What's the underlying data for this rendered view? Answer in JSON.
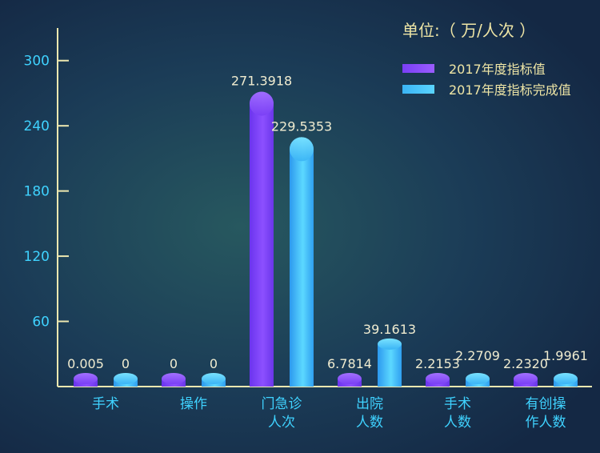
{
  "unit_label": "单位:（ 万/人次 ）",
  "colors": {
    "series1_top": "#8a4cff",
    "series1_bottom": "#5a2ee0",
    "series2_top": "#5ad4ff",
    "series2_bottom": "#2b9ef0",
    "axis": "#eee8b0",
    "tick_text": "#3fd2ff",
    "category_text": "#3fd2ff",
    "value_text": "#f0ecd0"
  },
  "chart_data": {
    "type": "bar",
    "title": "",
    "xlabel": "",
    "ylabel": "",
    "ylim": [
      0,
      330
    ],
    "yticks": [
      60,
      120,
      180,
      240,
      300
    ],
    "grid": false,
    "legend_position": "top-right",
    "categories": [
      [
        "手术"
      ],
      [
        "操作"
      ],
      [
        "门急诊",
        "人次"
      ],
      [
        "出院",
        "人数"
      ],
      [
        "手术",
        "人数"
      ],
      [
        "有创操",
        "作人数"
      ]
    ],
    "series": [
      {
        "name": "2017年度指标值",
        "values": [
          0.005,
          0,
          271.3918,
          6.7814,
          2.2153,
          2.232
        ],
        "labels": [
          "0.005",
          "0",
          "271.3918",
          "6.7814",
          "2.2153",
          "2.2320"
        ]
      },
      {
        "name": "2017年度指标完成值",
        "values": [
          0,
          0,
          229.5353,
          39.1613,
          2.2709,
          1.9961
        ],
        "labels": [
          "0",
          "0",
          "229.5353",
          "39.1613",
          "2.2709",
          "1.9961"
        ]
      }
    ]
  }
}
